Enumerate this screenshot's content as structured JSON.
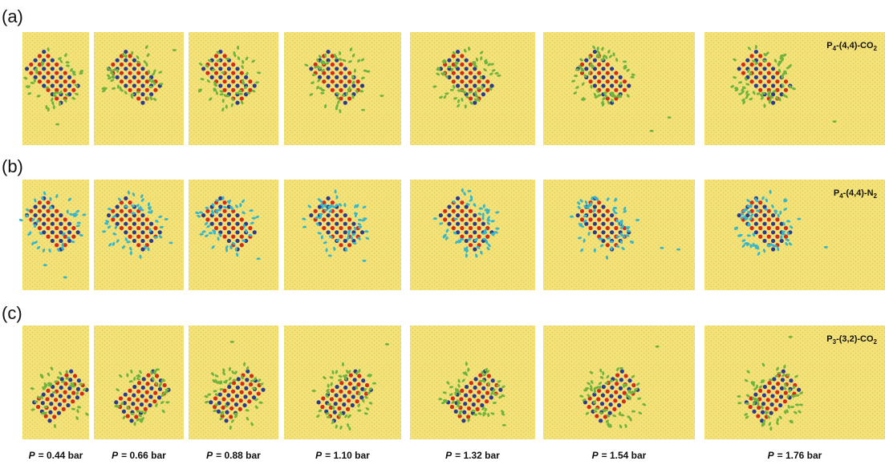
{
  "rows": [
    {
      "label": "(a)",
      "system": {
        "base": "P",
        "sub1": "4",
        "mid": "-(4,4)-CO",
        "sub2": "2"
      }
    },
    {
      "label": "(b)",
      "system": {
        "base": "P",
        "sub1": "4",
        "mid": "-(4,4)-N",
        "sub2": "2"
      }
    },
    {
      "label": "(c)",
      "system": {
        "base": "P",
        "sub1": "3",
        "mid": "-(3,2)-CO",
        "sub2": "2"
      }
    }
  ],
  "pressure_symbol": "P",
  "pressures": [
    "= 0.44 bar",
    "= 0.66 bar",
    "= 0.88 bar",
    "= 1.10 bar",
    "= 1.32 bar",
    "= 1.54 bar",
    "= 1.76 bar"
  ]
}
